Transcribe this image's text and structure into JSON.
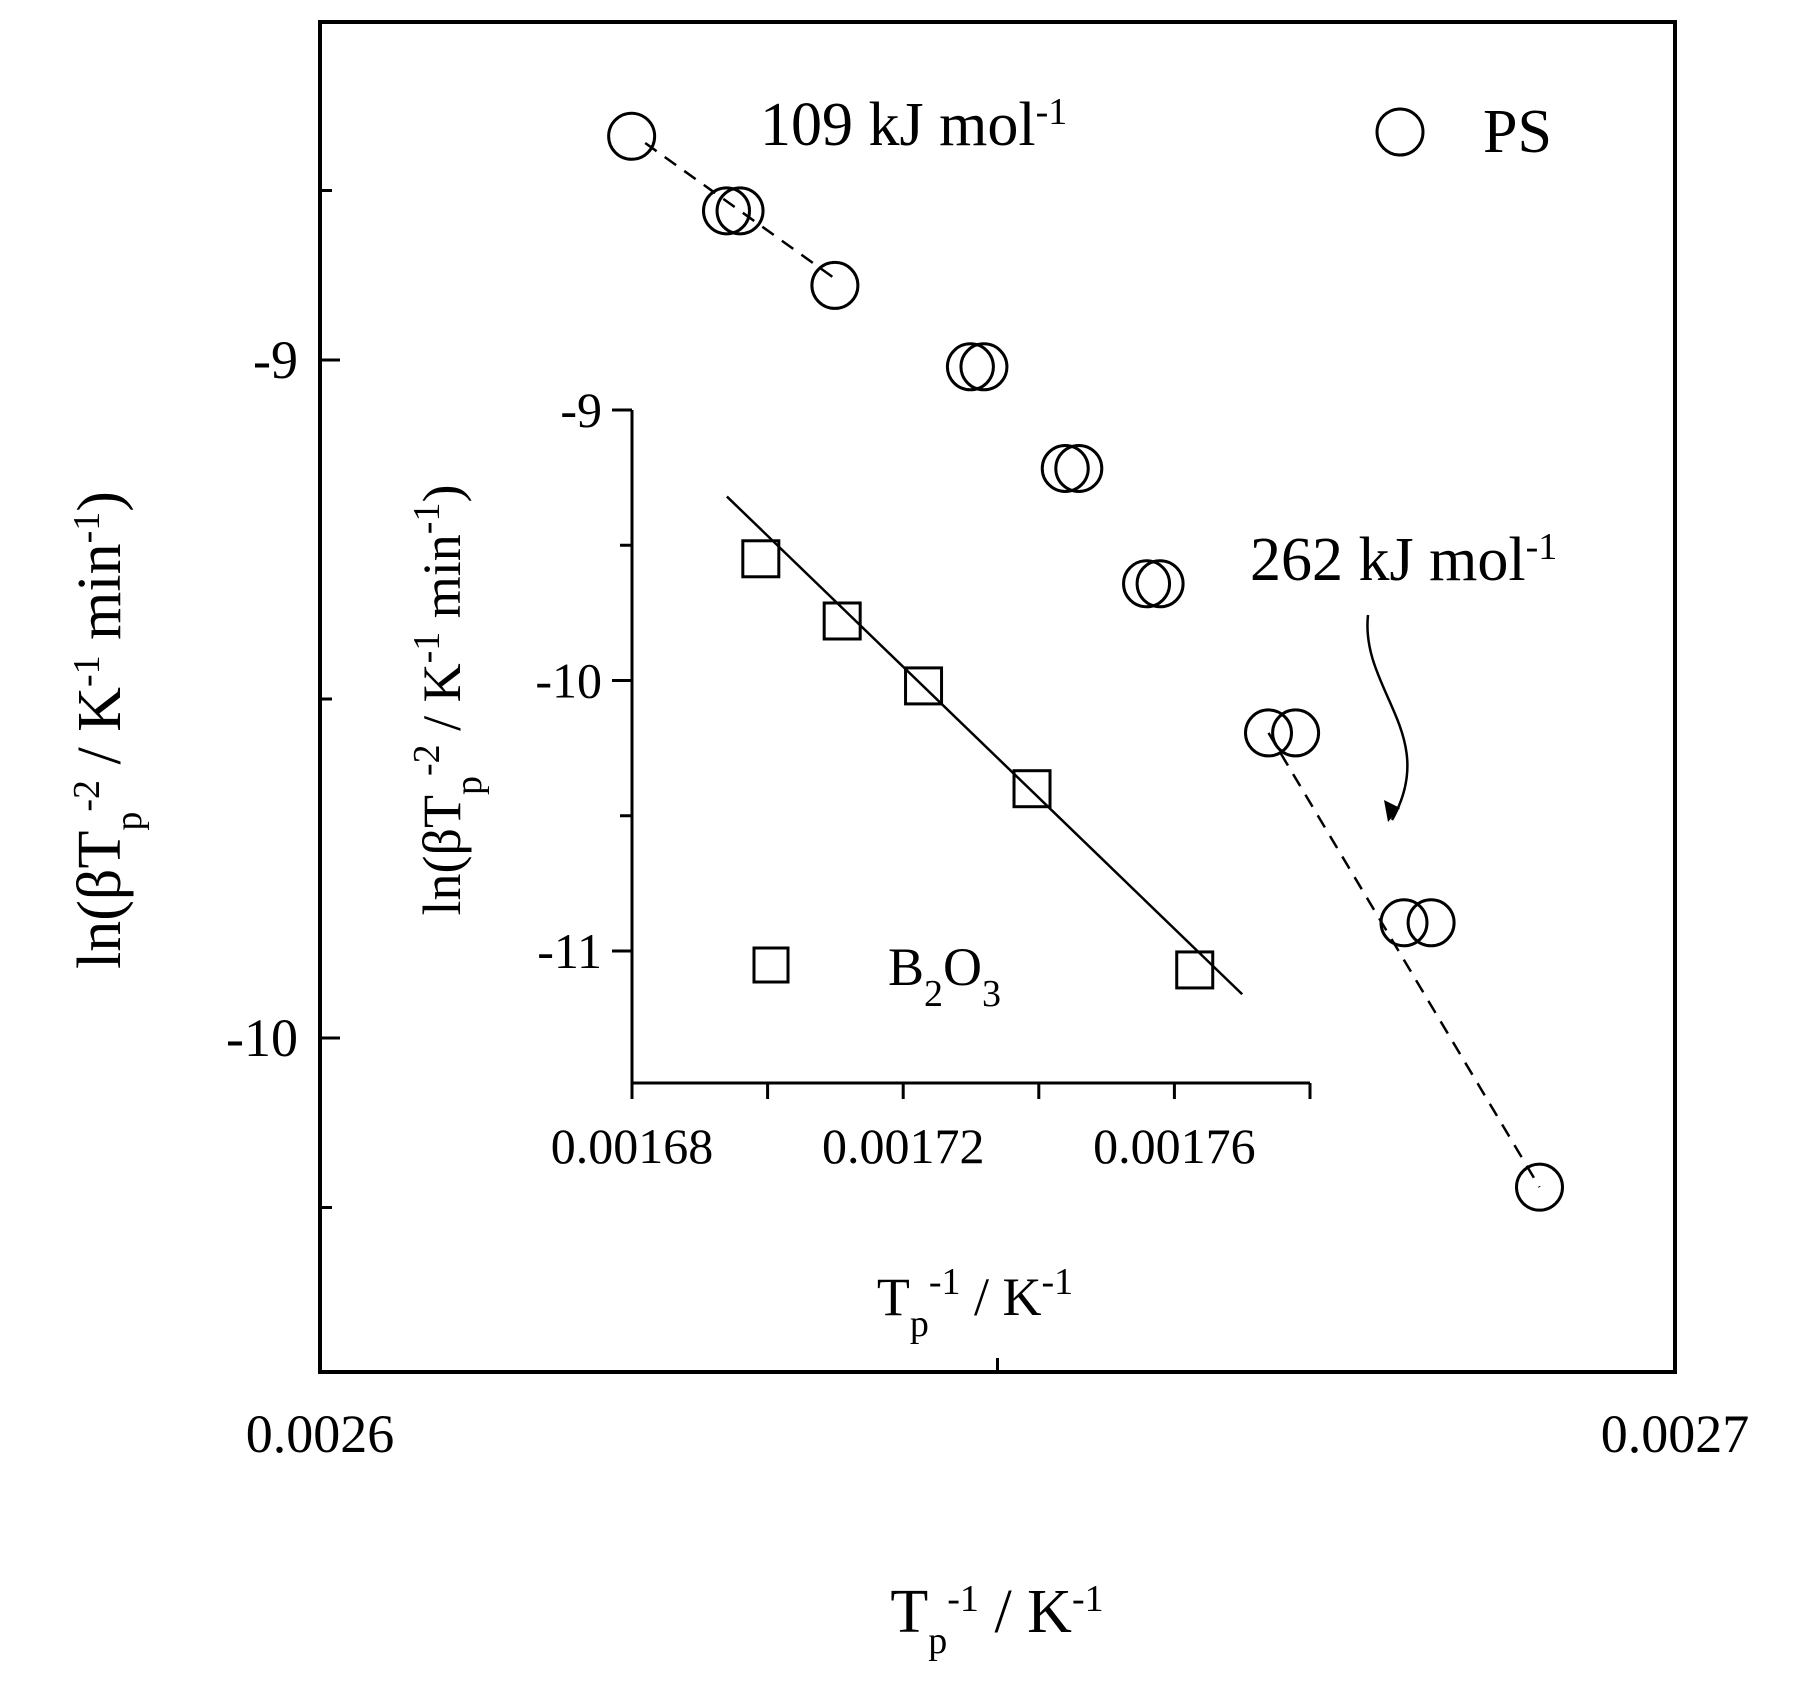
{
  "chart_data": [
    {
      "type": "scatter",
      "xlabel": {
        "main": "T",
        "sub": "p",
        "sup": "-1",
        "rest": " / K",
        "sup2": "-1"
      },
      "ylabel": {
        "pre": "ln(βT",
        "sub": "p",
        "sup": "-2",
        "mid": " / K",
        "sup2": "-1",
        "post": " min",
        "sup3": "-1",
        "close": ")"
      },
      "xlim": [
        0.0026,
        0.0027
      ],
      "ylim": [
        -10.5,
        -8.7
      ],
      "xticks": [
        0.0026,
        0.0027
      ],
      "xtick_labels": [
        "0.0026",
        "0.0027"
      ],
      "yticks": [
        -9,
        -10
      ],
      "ytick_labels": [
        "-9",
        "-10"
      ],
      "grid": false,
      "legend": {
        "placement": "top-right",
        "label": "PS",
        "marker": "circle"
      },
      "series": [
        {
          "name": "PS",
          "marker": "circle",
          "x": [
            0.002623,
            0.00263,
            0.002631,
            0.002638,
            0.002648,
            0.002649,
            0.002655,
            0.002656,
            0.002661,
            0.002662,
            0.00267,
            0.002672,
            0.00268,
            0.002682,
            0.00269
          ],
          "y": [
            -8.67,
            -8.78,
            -8.78,
            -8.89,
            -9.01,
            -9.01,
            -9.16,
            -9.16,
            -9.33,
            -9.33,
            -9.55,
            -9.55,
            -9.83,
            -9.83,
            -10.22
          ]
        }
      ],
      "fit_lines": [
        {
          "style": "dashed",
          "x": [
            0.002624,
            0.002638
          ],
          "y": [
            -8.68,
            -8.88
          ]
        },
        {
          "style": "dashed",
          "x": [
            0.00267,
            0.00269
          ],
          "y": [
            -9.55,
            -10.22
          ]
        }
      ],
      "annotations": [
        {
          "text": "109 kJ mol",
          "sup": "-1"
        },
        {
          "text": "262 kJ mol",
          "sup": "-1"
        }
      ]
    },
    {
      "type": "scatter",
      "inset": true,
      "xlabel": {
        "main": "T",
        "sub": "p",
        "sup": "-1",
        "rest": " / K",
        "sup2": "-1"
      },
      "ylabel": {
        "pre": "ln(βT",
        "sub": "p",
        "sup": "-2",
        "mid": " / K",
        "sup2": "-1",
        "post": " min",
        "sup3": "-1",
        "close": ")"
      },
      "xlim": [
        0.00168,
        0.00178
      ],
      "ylim": [
        -11.5,
        -9.0
      ],
      "xticks": [
        0.00168,
        0.00172,
        0.00176
      ],
      "xtick_labels": [
        "0.00168",
        "0.00172",
        "0.00176"
      ],
      "yticks": [
        -9,
        -10,
        -11
      ],
      "ytick_labels": [
        "-9",
        "-10",
        "-11"
      ],
      "grid": false,
      "legend": {
        "placement": "bottom-left",
        "label_main": "B",
        "label_sub1": "2",
        "label_mid": "O",
        "label_sub2": "3",
        "marker": "square"
      },
      "series": [
        {
          "name": "B2O3",
          "marker": "square",
          "x": [
            0.001699,
            0.001711,
            0.001723,
            0.001739,
            0.001763
          ],
          "y": [
            -9.55,
            -9.78,
            -10.02,
            -10.4,
            -11.07
          ]
        }
      ],
      "fit_lines": [
        {
          "style": "solid",
          "x": [
            0.001694,
            0.00177
          ],
          "y": [
            -9.32,
            -11.16
          ]
        }
      ]
    }
  ]
}
